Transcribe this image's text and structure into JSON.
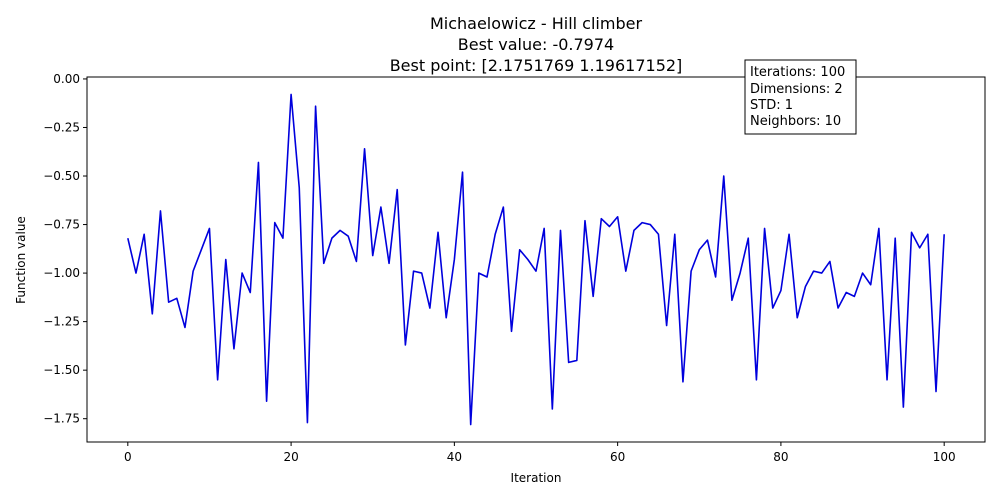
{
  "chart_data": {
    "type": "line",
    "title_lines": [
      "Michaelowicz - Hill climber",
      "Best value: -0.7974",
      "Best point: [2.1751769  1.19617152]"
    ],
    "xlabel": "Iteration",
    "ylabel": "Function value",
    "xlim": [
      -5,
      105
    ],
    "ylim": [
      -1.87,
      0.01
    ],
    "xticks": [
      0,
      20,
      40,
      60,
      80,
      100
    ],
    "xtick_labels": [
      "0",
      "20",
      "40",
      "60",
      "80",
      "100"
    ],
    "yticks": [
      0.0,
      -0.25,
      -0.5,
      -0.75,
      -1.0,
      -1.25,
      -1.5,
      -1.75
    ],
    "ytick_labels": [
      "0.00",
      "−0.25",
      "−0.50",
      "−0.75",
      "−1.00",
      "−1.25",
      "−1.50",
      "−1.75"
    ],
    "grid": false,
    "series": [
      {
        "color": "#0000dd",
        "x": [
          0,
          1,
          2,
          3,
          4,
          5,
          6,
          7,
          8,
          9,
          10,
          11,
          12,
          13,
          14,
          15,
          16,
          17,
          18,
          19,
          20,
          21,
          22,
          23,
          24,
          25,
          26,
          27,
          28,
          29,
          30,
          31,
          32,
          33,
          34,
          35,
          36,
          37,
          38,
          39,
          40,
          41,
          42,
          43,
          44,
          45,
          46,
          47,
          48,
          49,
          50,
          51,
          52,
          53,
          54,
          55,
          56,
          57,
          58,
          59,
          60,
          61,
          62,
          63,
          64,
          65,
          66,
          67,
          68,
          69,
          70,
          71,
          72,
          73,
          74,
          75,
          76,
          77,
          78,
          79,
          80,
          81,
          82,
          83,
          84,
          85,
          86,
          87,
          88,
          89,
          90,
          91,
          92,
          93,
          94,
          95,
          96,
          97,
          98,
          99,
          100
        ],
        "y": [
          -0.82,
          -1.0,
          -0.8,
          -1.21,
          -0.68,
          -1.15,
          -1.13,
          -1.28,
          -0.99,
          -0.88,
          -0.77,
          -1.55,
          -0.93,
          -1.39,
          -1.0,
          -1.1,
          -0.43,
          -1.66,
          -0.74,
          -0.82,
          -0.08,
          -0.56,
          -1.77,
          -0.14,
          -0.95,
          -0.82,
          -0.78,
          -0.81,
          -0.94,
          -0.36,
          -0.91,
          -0.66,
          -0.95,
          -0.57,
          -1.37,
          -0.99,
          -1.0,
          -1.18,
          -0.79,
          -1.23,
          -0.93,
          -0.48,
          -1.78,
          -1.0,
          -1.02,
          -0.8,
          -0.66,
          -1.3,
          -0.88,
          -0.93,
          -0.99,
          -0.77,
          -1.7,
          -0.78,
          -1.46,
          -1.45,
          -0.73,
          -1.12,
          -0.72,
          -0.76,
          -0.71,
          -0.99,
          -0.78,
          -0.74,
          -0.75,
          -0.8,
          -1.27,
          -0.8,
          -1.56,
          -0.99,
          -0.88,
          -0.83,
          -1.02,
          -0.5,
          -1.14,
          -1.0,
          -0.82,
          -1.55,
          -0.77,
          -1.18,
          -1.09,
          -0.8,
          -1.23,
          -1.07,
          -0.99,
          -1.0,
          -0.94,
          -1.18,
          -1.1,
          -1.12,
          -1.0,
          -1.06,
          -0.77,
          -1.55,
          -0.82,
          -1.69,
          -0.79,
          -0.87,
          -0.8,
          -1.61,
          -0.8
        ]
      }
    ],
    "info_box": {
      "placement": "top-right",
      "lines": [
        "Iterations: 100",
        "Dimensions: 2",
        "STD: 1",
        "Neighbors: 10"
      ]
    }
  }
}
